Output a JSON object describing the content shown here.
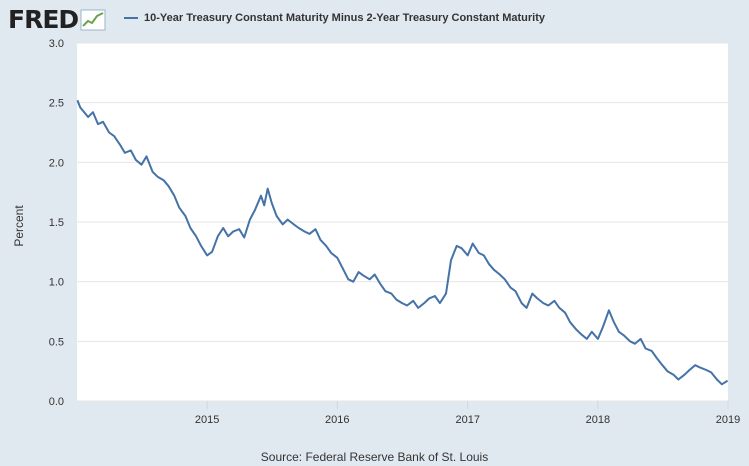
{
  "logo": {
    "text": "FRED",
    "icon": "trend-graph-icon"
  },
  "source": "Source: Federal Reserve Bank of St. Louis",
  "colors": {
    "background": "#e1e9f0",
    "plot_background": "#ffffff",
    "series": "#4572a7",
    "grid": "#e6e6e6"
  },
  "chart_data": {
    "type": "line",
    "title": "",
    "xlabel": "",
    "ylabel": "Percent",
    "ylim": [
      0,
      3
    ],
    "xlim": [
      "2014-01-01",
      "2019-01-01"
    ],
    "yticks": [
      "0.0",
      "0.5",
      "1.0",
      "1.5",
      "2.0",
      "2.5",
      "3.0"
    ],
    "xticks": [
      "2015",
      "2016",
      "2017",
      "2018",
      "2019"
    ],
    "grid": true,
    "legend_position": "top",
    "series": [
      {
        "name": "10-Year Treasury Constant Maturity Minus 2-Year Treasury Constant Maturity",
        "x": [
          "2014-01-02",
          "2014-01-10",
          "2014-02-01",
          "2014-02-15",
          "2014-03-01",
          "2014-03-15",
          "2014-04-01",
          "2014-04-15",
          "2014-05-01",
          "2014-05-15",
          "2014-06-01",
          "2014-06-15",
          "2014-07-01",
          "2014-07-15",
          "2014-08-01",
          "2014-08-15",
          "2014-09-01",
          "2014-09-15",
          "2014-10-01",
          "2014-10-15",
          "2014-11-01",
          "2014-11-15",
          "2014-12-01",
          "2014-12-15",
          "2015-01-01",
          "2015-01-15",
          "2015-01-31",
          "2015-02-15",
          "2015-03-01",
          "2015-03-15",
          "2015-04-01",
          "2015-04-15",
          "2015-05-01",
          "2015-05-15",
          "2015-06-01",
          "2015-06-10",
          "2015-06-20",
          "2015-07-01",
          "2015-07-15",
          "2015-08-01",
          "2015-08-15",
          "2015-09-01",
          "2015-09-15",
          "2015-10-01",
          "2015-10-15",
          "2015-11-01",
          "2015-11-15",
          "2015-12-01",
          "2015-12-15",
          "2016-01-01",
          "2016-01-15",
          "2016-02-01",
          "2016-02-15",
          "2016-03-01",
          "2016-03-15",
          "2016-04-01",
          "2016-04-15",
          "2016-05-01",
          "2016-05-15",
          "2016-06-01",
          "2016-06-15",
          "2016-07-01",
          "2016-07-15",
          "2016-08-01",
          "2016-08-15",
          "2016-09-01",
          "2016-09-15",
          "2016-10-01",
          "2016-10-15",
          "2016-11-01",
          "2016-11-15",
          "2016-12-01",
          "2016-12-15",
          "2017-01-01",
          "2017-01-15",
          "2017-02-01",
          "2017-02-15",
          "2017-03-01",
          "2017-03-15",
          "2017-04-01",
          "2017-04-15",
          "2017-05-01",
          "2017-05-15",
          "2017-06-01",
          "2017-06-15",
          "2017-07-01",
          "2017-07-15",
          "2017-08-01",
          "2017-08-15",
          "2017-09-01",
          "2017-09-15",
          "2017-10-01",
          "2017-10-15",
          "2017-11-01",
          "2017-11-15",
          "2017-12-01",
          "2017-12-15",
          "2018-01-01",
          "2018-01-15",
          "2018-02-01",
          "2018-02-15",
          "2018-03-01",
          "2018-03-15",
          "2018-04-01",
          "2018-04-15",
          "2018-05-01",
          "2018-05-15",
          "2018-06-01",
          "2018-06-15",
          "2018-07-01",
          "2018-07-15",
          "2018-08-01",
          "2018-08-15",
          "2018-09-01",
          "2018-09-15",
          "2018-10-01",
          "2018-10-15",
          "2018-11-01",
          "2018-11-15",
          "2018-12-01",
          "2018-12-15",
          "2018-12-31"
        ],
        "values": [
          2.52,
          2.46,
          2.38,
          2.42,
          2.32,
          2.34,
          2.25,
          2.22,
          2.15,
          2.08,
          2.1,
          2.02,
          1.98,
          2.05,
          1.92,
          1.88,
          1.85,
          1.8,
          1.72,
          1.62,
          1.55,
          1.45,
          1.38,
          1.3,
          1.22,
          1.25,
          1.38,
          1.45,
          1.38,
          1.42,
          1.44,
          1.37,
          1.52,
          1.6,
          1.72,
          1.64,
          1.78,
          1.66,
          1.55,
          1.48,
          1.52,
          1.48,
          1.45,
          1.42,
          1.4,
          1.44,
          1.35,
          1.3,
          1.24,
          1.2,
          1.12,
          1.02,
          1.0,
          1.08,
          1.05,
          1.02,
          1.06,
          0.98,
          0.92,
          0.9,
          0.85,
          0.82,
          0.8,
          0.84,
          0.78,
          0.82,
          0.86,
          0.88,
          0.82,
          0.9,
          1.18,
          1.3,
          1.28,
          1.22,
          1.32,
          1.24,
          1.22,
          1.15,
          1.1,
          1.06,
          1.02,
          0.95,
          0.92,
          0.82,
          0.78,
          0.9,
          0.86,
          0.82,
          0.8,
          0.84,
          0.78,
          0.74,
          0.66,
          0.6,
          0.56,
          0.52,
          0.58,
          0.52,
          0.62,
          0.76,
          0.66,
          0.58,
          0.55,
          0.5,
          0.48,
          0.52,
          0.44,
          0.42,
          0.36,
          0.3,
          0.25,
          0.22,
          0.18,
          0.22,
          0.26,
          0.3,
          0.28,
          0.26,
          0.24,
          0.18,
          0.14,
          0.17
        ]
      }
    ]
  }
}
